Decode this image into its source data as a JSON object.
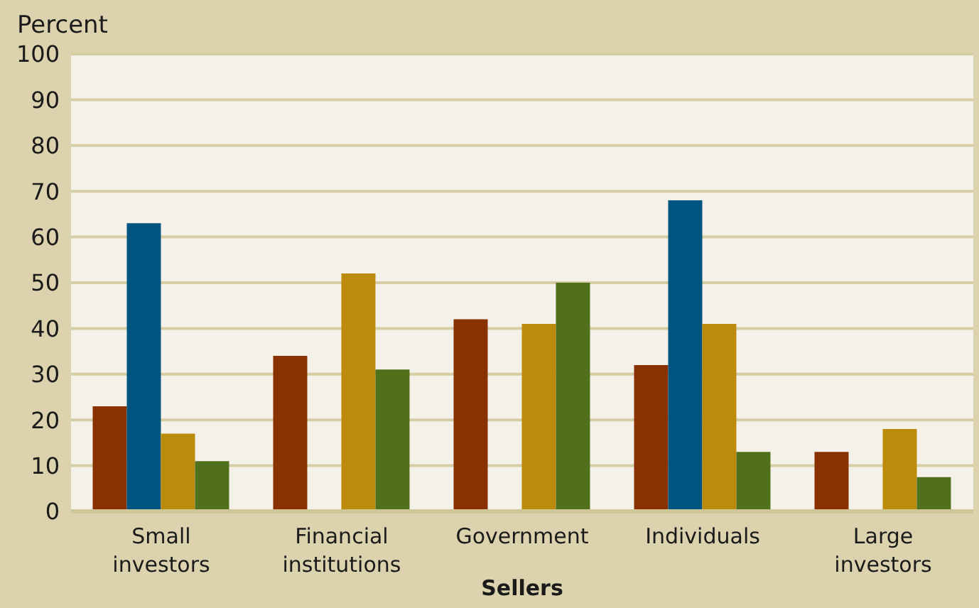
{
  "chart_data": {
    "type": "bar",
    "ylabel": "Percent",
    "xlabel": "Sellers",
    "categories": [
      "Small investors",
      "Financial institutions",
      "Government",
      "Individuals",
      "Large investors"
    ],
    "series": [
      {
        "color": "#8a3100",
        "values": [
          23,
          34,
          42,
          32,
          13
        ]
      },
      {
        "color": "#005580",
        "values": [
          63,
          null,
          null,
          68,
          null
        ]
      },
      {
        "color": "#bc8b0b",
        "values": [
          17,
          52,
          41,
          41,
          18
        ]
      },
      {
        "color": "#50701c",
        "values": [
          11,
          31,
          50,
          13,
          7.5
        ]
      }
    ],
    "ylim": [
      0,
      100
    ],
    "yticks": [
      0,
      10,
      20,
      30,
      40,
      50,
      60,
      70,
      80,
      90,
      100
    ],
    "grid": "y",
    "legend": false
  }
}
